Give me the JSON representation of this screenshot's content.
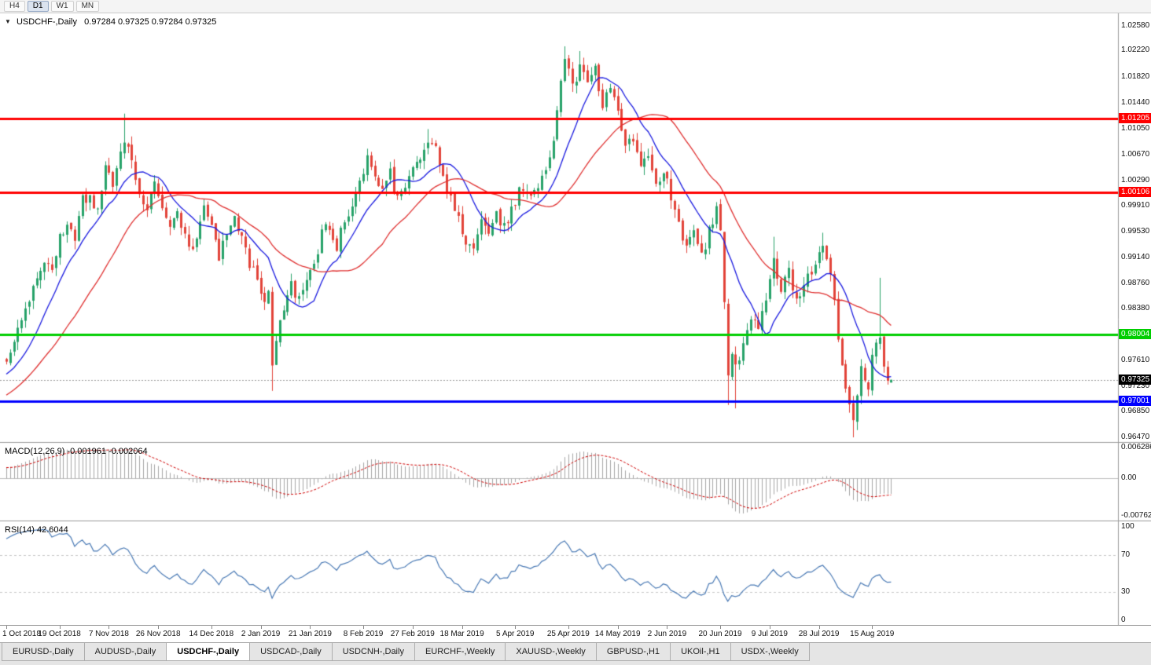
{
  "toolbar": {
    "timeframes": [
      {
        "label": "H4",
        "active": false
      },
      {
        "label": "D1",
        "active": true
      },
      {
        "label": "W1",
        "active": false
      },
      {
        "label": "MN",
        "active": false
      }
    ]
  },
  "chart_header": {
    "collapse_icon": "▼",
    "title": "USDCHF-,Daily",
    "quote_line": "0.97284 0.97325 0.97284 0.97325"
  },
  "indicators": {
    "macd": {
      "label": "MACD(12,26,9) -0.001961 -0.002064",
      "axis_ticks": [
        {
          "label": "0.006286",
          "value": 0.006286
        },
        {
          "label": "0.00",
          "value": 0
        },
        {
          "label": "-0.00762",
          "value": -0.00762
        }
      ]
    },
    "rsi": {
      "label": "RSI(14) 42.6044",
      "axis_ticks": [
        {
          "label": "100",
          "value": 100
        },
        {
          "label": "70",
          "value": 70
        },
        {
          "label": "30",
          "value": 30
        },
        {
          "label": "0",
          "value": 0
        }
      ]
    }
  },
  "tabs": [
    {
      "label": "EURUSD-,Daily",
      "active": false
    },
    {
      "label": "AUDUSD-,Daily",
      "active": false
    },
    {
      "label": "USDCHF-,Daily",
      "active": true
    },
    {
      "label": "USDCAD-,Daily",
      "active": false
    },
    {
      "label": "USDCNH-,Daily",
      "active": false
    },
    {
      "label": "EURCHF-,Weekly",
      "active": false
    },
    {
      "label": "XAUUSD-,Weekly",
      "active": false
    },
    {
      "label": "GBPUSD-,H1",
      "active": false
    },
    {
      "label": "UKOil-,H1",
      "active": false
    },
    {
      "label": "USDX-,Weekly",
      "active": false
    }
  ],
  "chart_data": {
    "type": "candlestick",
    "symbol": "USDCHF-",
    "timeframe": "Daily",
    "bars": 234,
    "y_range": [
      0.964,
      1.0277
    ],
    "last_quote": {
      "open": 0.97284,
      "high": 0.97325,
      "low": 0.97284,
      "close": 0.97325
    },
    "current_price": {
      "label": "0.97325",
      "value": 0.97325
    },
    "price_ticks": [
      {
        "label": "1.02580",
        "value": 1.0258
      },
      {
        "label": "1.02220",
        "value": 1.0222
      },
      {
        "label": "1.01820",
        "value": 1.0182
      },
      {
        "label": "1.01440",
        "value": 1.0144
      },
      {
        "label": "1.01050",
        "value": 1.0105
      },
      {
        "label": "1.00670",
        "value": 1.0067
      },
      {
        "label": "1.00290",
        "value": 1.0029
      },
      {
        "label": "0.99910",
        "value": 0.9991
      },
      {
        "label": "0.99530",
        "value": 0.9953
      },
      {
        "label": "0.99140",
        "value": 0.9914
      },
      {
        "label": "0.98760",
        "value": 0.9876
      },
      {
        "label": "0.98380",
        "value": 0.9838
      },
      {
        "label": "0.97610",
        "value": 0.9761
      },
      {
        "label": "0.97230",
        "value": 0.9723
      },
      {
        "label": "0.96850",
        "value": 0.9685
      },
      {
        "label": "0.96470",
        "value": 0.9647
      }
    ],
    "levels": [
      {
        "label": "1.01205",
        "value": 1.01205,
        "color": "#ff0000",
        "width": 3
      },
      {
        "label": "1.00106",
        "value": 1.00106,
        "color": "#ff0000",
        "width": 3
      },
      {
        "label": "0.98004",
        "value": 0.98004,
        "color": "#00ce00",
        "width": 3
      },
      {
        "label": "0.97001",
        "value": 0.97001,
        "color": "#0000ff",
        "width": 3
      }
    ],
    "date_ticks": [
      {
        "label": "1 Oct 2018",
        "bar": 0
      },
      {
        "label": "19 Oct 2018",
        "bar": 14
      },
      {
        "label": "7 Nov 2018",
        "bar": 27
      },
      {
        "label": "26 Nov 2018",
        "bar": 40
      },
      {
        "label": "14 Dec 2018",
        "bar": 54
      },
      {
        "label": "2 Jan 2019",
        "bar": 67
      },
      {
        "label": "21 Jan 2019",
        "bar": 80
      },
      {
        "label": "8 Feb 2019",
        "bar": 94
      },
      {
        "label": "27 Feb 2019",
        "bar": 107
      },
      {
        "label": "18 Mar 2019",
        "bar": 120
      },
      {
        "label": "5 Apr 2019",
        "bar": 134
      },
      {
        "label": "25 Apr 2019",
        "bar": 148
      },
      {
        "label": "14 May 2019",
        "bar": 161
      },
      {
        "label": "2 Jun 2019",
        "bar": 174
      },
      {
        "label": "20 Jun 2019",
        "bar": 188
      },
      {
        "label": "9 Jul 2019",
        "bar": 201
      },
      {
        "label": "28 Jul 2019",
        "bar": 214
      },
      {
        "label": "15 Aug 2019",
        "bar": 228
      }
    ],
    "trend_waypoints": [
      [
        0,
        0.9762
      ],
      [
        2,
        0.9788
      ],
      [
        4,
        0.9815
      ],
      [
        6,
        0.9845
      ],
      [
        8,
        0.9885
      ],
      [
        10,
        0.9912
      ],
      [
        12,
        0.9888
      ],
      [
        14,
        0.9948
      ],
      [
        16,
        0.9965
      ],
      [
        18,
        0.9942
      ],
      [
        20,
        0.9998
      ],
      [
        22,
        1.0008
      ],
      [
        24,
        0.9978
      ],
      [
        26,
        1.0045
      ],
      [
        28,
        1.0022
      ],
      [
        31,
        1.0092
      ],
      [
        33,
        1.0058
      ],
      [
        35,
        1.0008
      ],
      [
        37,
        0.9982
      ],
      [
        39,
        1.0022
      ],
      [
        41,
        0.9992
      ],
      [
        43,
        0.9952
      ],
      [
        45,
        0.9988
      ],
      [
        47,
        0.9942
      ],
      [
        49,
        0.9928
      ],
      [
        52,
        0.9985
      ],
      [
        54,
        0.996
      ],
      [
        56,
        0.9918
      ],
      [
        58,
        0.9945
      ],
      [
        60,
        0.9968
      ],
      [
        62,
        0.9938
      ],
      [
        64,
        0.9905
      ],
      [
        66,
        0.9878
      ],
      [
        68,
        0.9852
      ],
      [
        69,
        0.9868
      ],
      [
        70,
        0.9762
      ],
      [
        71,
        0.9798
      ],
      [
        73,
        0.9838
      ],
      [
        75,
        0.9872
      ],
      [
        77,
        0.9848
      ],
      [
        79,
        0.9882
      ],
      [
        81,
        0.9905
      ],
      [
        83,
        0.9948
      ],
      [
        85,
        0.9962
      ],
      [
        87,
        0.9932
      ],
      [
        89,
        0.9968
      ],
      [
        91,
        0.9995
      ],
      [
        93,
        1.0032
      ],
      [
        95,
        1.0062
      ],
      [
        97,
        1.0028
      ],
      [
        99,
        1.0008
      ],
      [
        101,
        1.0038
      ],
      [
        103,
        0.9998
      ],
      [
        105,
        1.0012
      ],
      [
        107,
        1.0042
      ],
      [
        109,
        1.0068
      ],
      [
        111,
        1.0092
      ],
      [
        113,
        1.0072
      ],
      [
        115,
        1.0042
      ],
      [
        117,
        0.9998
      ],
      [
        119,
        0.9972
      ],
      [
        121,
        0.9938
      ],
      [
        123,
        0.9925
      ],
      [
        125,
        0.9968
      ],
      [
        127,
        0.9945
      ],
      [
        129,
        0.9978
      ],
      [
        131,
        0.9958
      ],
      [
        134,
        0.9998
      ],
      [
        136,
        1.0022
      ],
      [
        138,
        1.0005
      ],
      [
        140,
        1.0015
      ],
      [
        142,
        1.0042
      ],
      [
        144,
        1.0095
      ],
      [
        146,
        1.0175
      ],
      [
        147,
        1.0205
      ],
      [
        149,
        1.0168
      ],
      [
        151,
        1.0198
      ],
      [
        153,
        1.0178
      ],
      [
        155,
        1.0192
      ],
      [
        157,
        1.0145
      ],
      [
        159,
        1.0168
      ],
      [
        161,
        1.0125
      ],
      [
        163,
        1.0072
      ],
      [
        165,
        1.0095
      ],
      [
        167,
        1.0042
      ],
      [
        169,
        1.0068
      ],
      [
        171,
        1.0022
      ],
      [
        173,
        1.0048
      ],
      [
        175,
        1.0005
      ],
      [
        177,
        0.9962
      ],
      [
        179,
        0.9925
      ],
      [
        181,
        0.9958
      ],
      [
        183,
        0.9918
      ],
      [
        185,
        0.9952
      ],
      [
        187,
        0.9985
      ],
      [
        188,
        0.9948
      ],
      [
        189,
        0.9855
      ],
      [
        190,
        0.9742
      ],
      [
        191,
        0.9772
      ],
      [
        192,
        0.9748
      ],
      [
        194,
        0.9788
      ],
      [
        196,
        0.9825
      ],
      [
        198,
        0.9802
      ],
      [
        200,
        0.9858
      ],
      [
        202,
        0.9905
      ],
      [
        204,
        0.9872
      ],
      [
        206,
        0.9895
      ],
      [
        208,
        0.9852
      ],
      [
        210,
        0.9872
      ],
      [
        212,
        0.9892
      ],
      [
        214,
        0.9922
      ],
      [
        215,
        0.9935
      ],
      [
        217,
        0.9898
      ],
      [
        219,
        0.9792
      ],
      [
        220,
        0.9752
      ],
      [
        221,
        0.9722
      ],
      [
        222,
        0.9688
      ],
      [
        223,
        0.9668
      ],
      [
        224,
        0.9712
      ],
      [
        225,
        0.9748
      ],
      [
        226,
        0.9728
      ],
      [
        227,
        0.9715
      ],
      [
        228,
        0.9768
      ],
      [
        229,
        0.9782
      ],
      [
        230,
        0.9795
      ],
      [
        231,
        0.9752
      ],
      [
        232,
        0.9738
      ],
      [
        233,
        0.97325
      ]
    ],
    "forced_extremes": {
      "31": {
        "high": 1.0128
      },
      "70": {
        "low": 0.9716
      },
      "111": {
        "high": 1.0105
      },
      "147": {
        "high": 1.0228
      },
      "151": {
        "high": 1.0221
      },
      "190": {
        "low": 0.9695
      },
      "192": {
        "low": 0.969
      },
      "202": {
        "high": 0.9945
      },
      "215": {
        "high": 0.9951
      },
      "223": {
        "low": 0.9647
      },
      "230": {
        "high": 0.9884
      }
    },
    "moving_averages": [
      {
        "period": 12,
        "color": "#1a1ae0"
      },
      {
        "period": 30,
        "color": "#e03030"
      }
    ],
    "macd_params": {
      "fast": 12,
      "slow": 26,
      "signal": 9,
      "current": -0.001961,
      "current_signal": -0.002064,
      "range": [
        -0.0085,
        0.007
      ]
    },
    "rsi_params": {
      "period": 14,
      "current": 42.6044,
      "levels": [
        70,
        30
      ],
      "range": [
        -5,
        105
      ]
    },
    "warmup": {
      "bars": 40,
      "start": 0.962,
      "end": 0.9757
    },
    "colors": {
      "bull": "#27a269",
      "bear": "#e2443a",
      "macd_hist": "#a6a6a6",
      "macd_signal": "#d00000",
      "rsi_line": "#4a7ab5",
      "current_line": "#9a9a9a"
    }
  }
}
